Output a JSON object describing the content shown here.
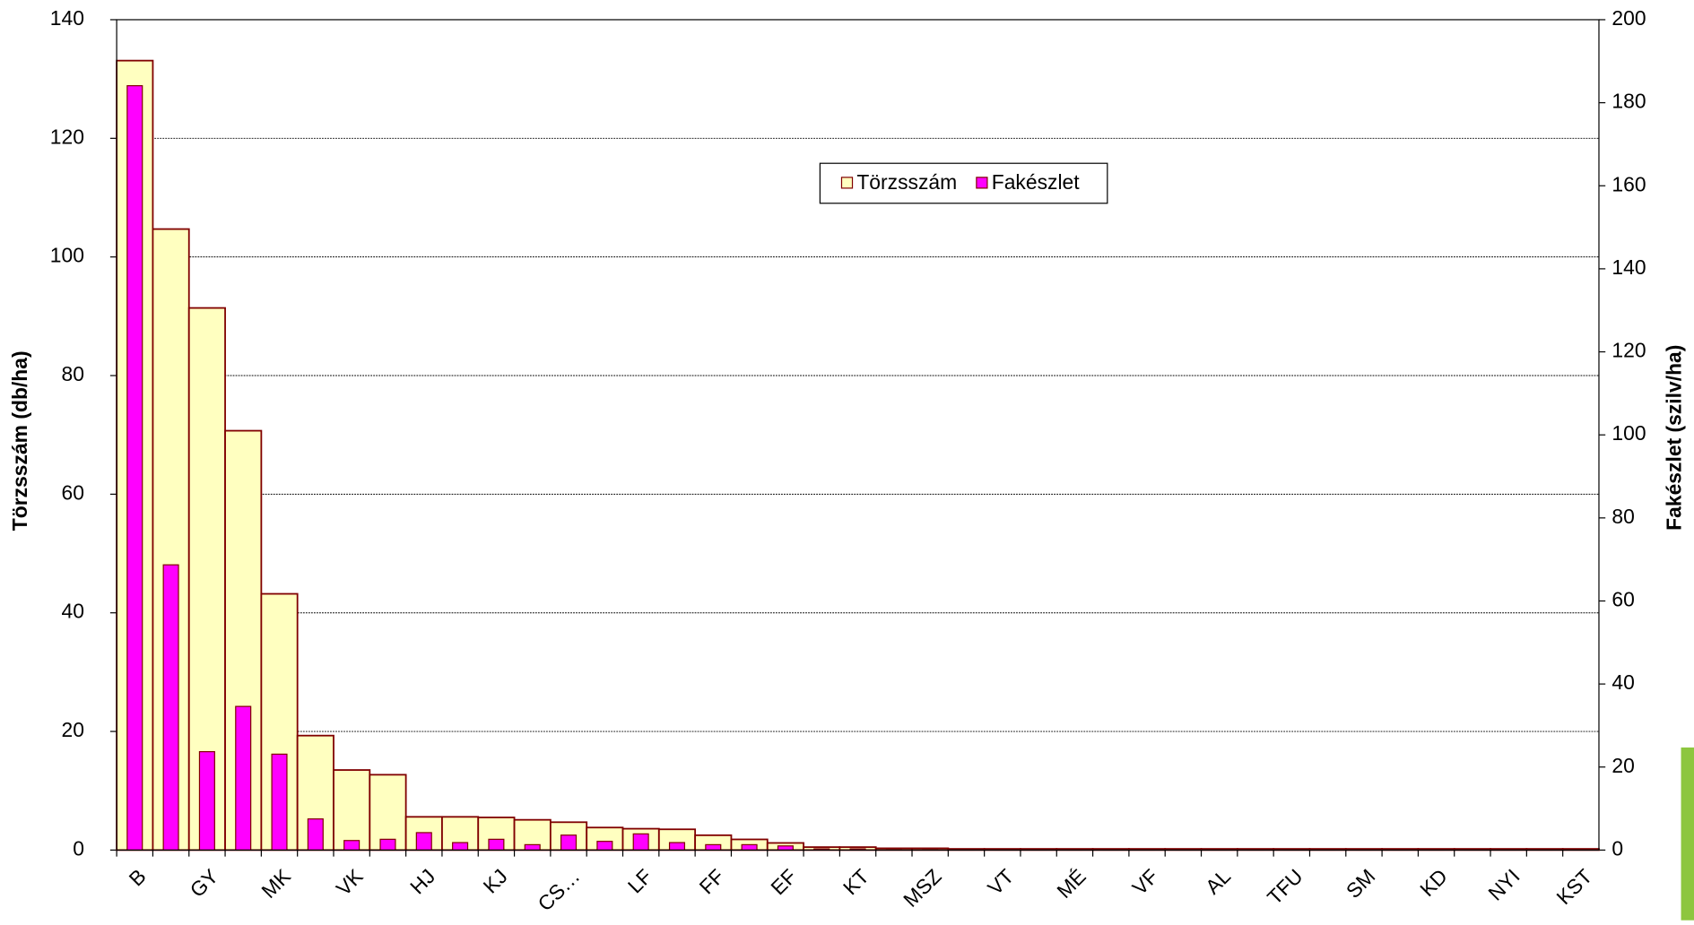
{
  "chart_data": {
    "type": "bar",
    "categories": [
      "B",
      null,
      "GY",
      null,
      "MK",
      null,
      "VK",
      null,
      "HJ",
      null,
      "KJ",
      null,
      "CS…",
      null,
      "LF",
      null,
      "FF",
      null,
      "EF",
      null,
      "KT",
      null,
      "MSZ",
      null,
      "VT",
      null,
      "MÉ",
      null,
      "VF",
      null,
      "AL",
      null,
      "TFU",
      null,
      "SM",
      null,
      "KD",
      null,
      "NYI",
      null,
      "KST"
    ],
    "series": [
      {
        "name": "Törzsszám",
        "color": "#ffffc0",
        "values": [
          133.1,
          104.7,
          91.4,
          70.7,
          43.2,
          19.3,
          13.5,
          12.7,
          5.6,
          5.6,
          5.5,
          5.1,
          4.7,
          3.8,
          3.6,
          3.5,
          2.5,
          1.8,
          1.2,
          0.5,
          0.5,
          0.3,
          0.3,
          0.2,
          0.2,
          0.2,
          0.2,
          0.2,
          0.2,
          0.2,
          0.2,
          0.2,
          0.2,
          0.2,
          0.2,
          0.2,
          0.2,
          0.2,
          0.2,
          0.2,
          0.2
        ]
      },
      {
        "name": "Fakészlet",
        "color": "#ff00ff",
        "axis": "y2",
        "values": [
          184.1,
          68.7,
          23.7,
          34.6,
          23.1,
          7.5,
          2.3,
          2.6,
          4.2,
          1.8,
          2.6,
          1.3,
          3.6,
          2.1,
          3.9,
          1.8,
          1.3,
          1.3,
          1.0,
          0.3,
          0.3,
          0.1,
          0.1,
          0.1,
          0.1,
          0.1,
          0.1,
          0.1,
          0.1,
          0.1,
          0.1,
          0.1,
          0.1,
          0.1,
          0.1,
          0.1,
          0.1,
          0.1,
          0.1,
          0.1,
          0.1
        ]
      }
    ],
    "y_label": "Törzsszám (db/ha)",
    "y2_label": "Fakészlet (szilv/ha)",
    "ylim": [
      0,
      140
    ],
    "yticks": [
      0,
      20,
      40,
      60,
      80,
      100,
      120,
      140
    ],
    "y2lim": [
      0,
      200
    ],
    "y2ticks": [
      0,
      20,
      40,
      60,
      80,
      100,
      120,
      140,
      160,
      180,
      200
    ],
    "grid": true,
    "legend": "top"
  }
}
